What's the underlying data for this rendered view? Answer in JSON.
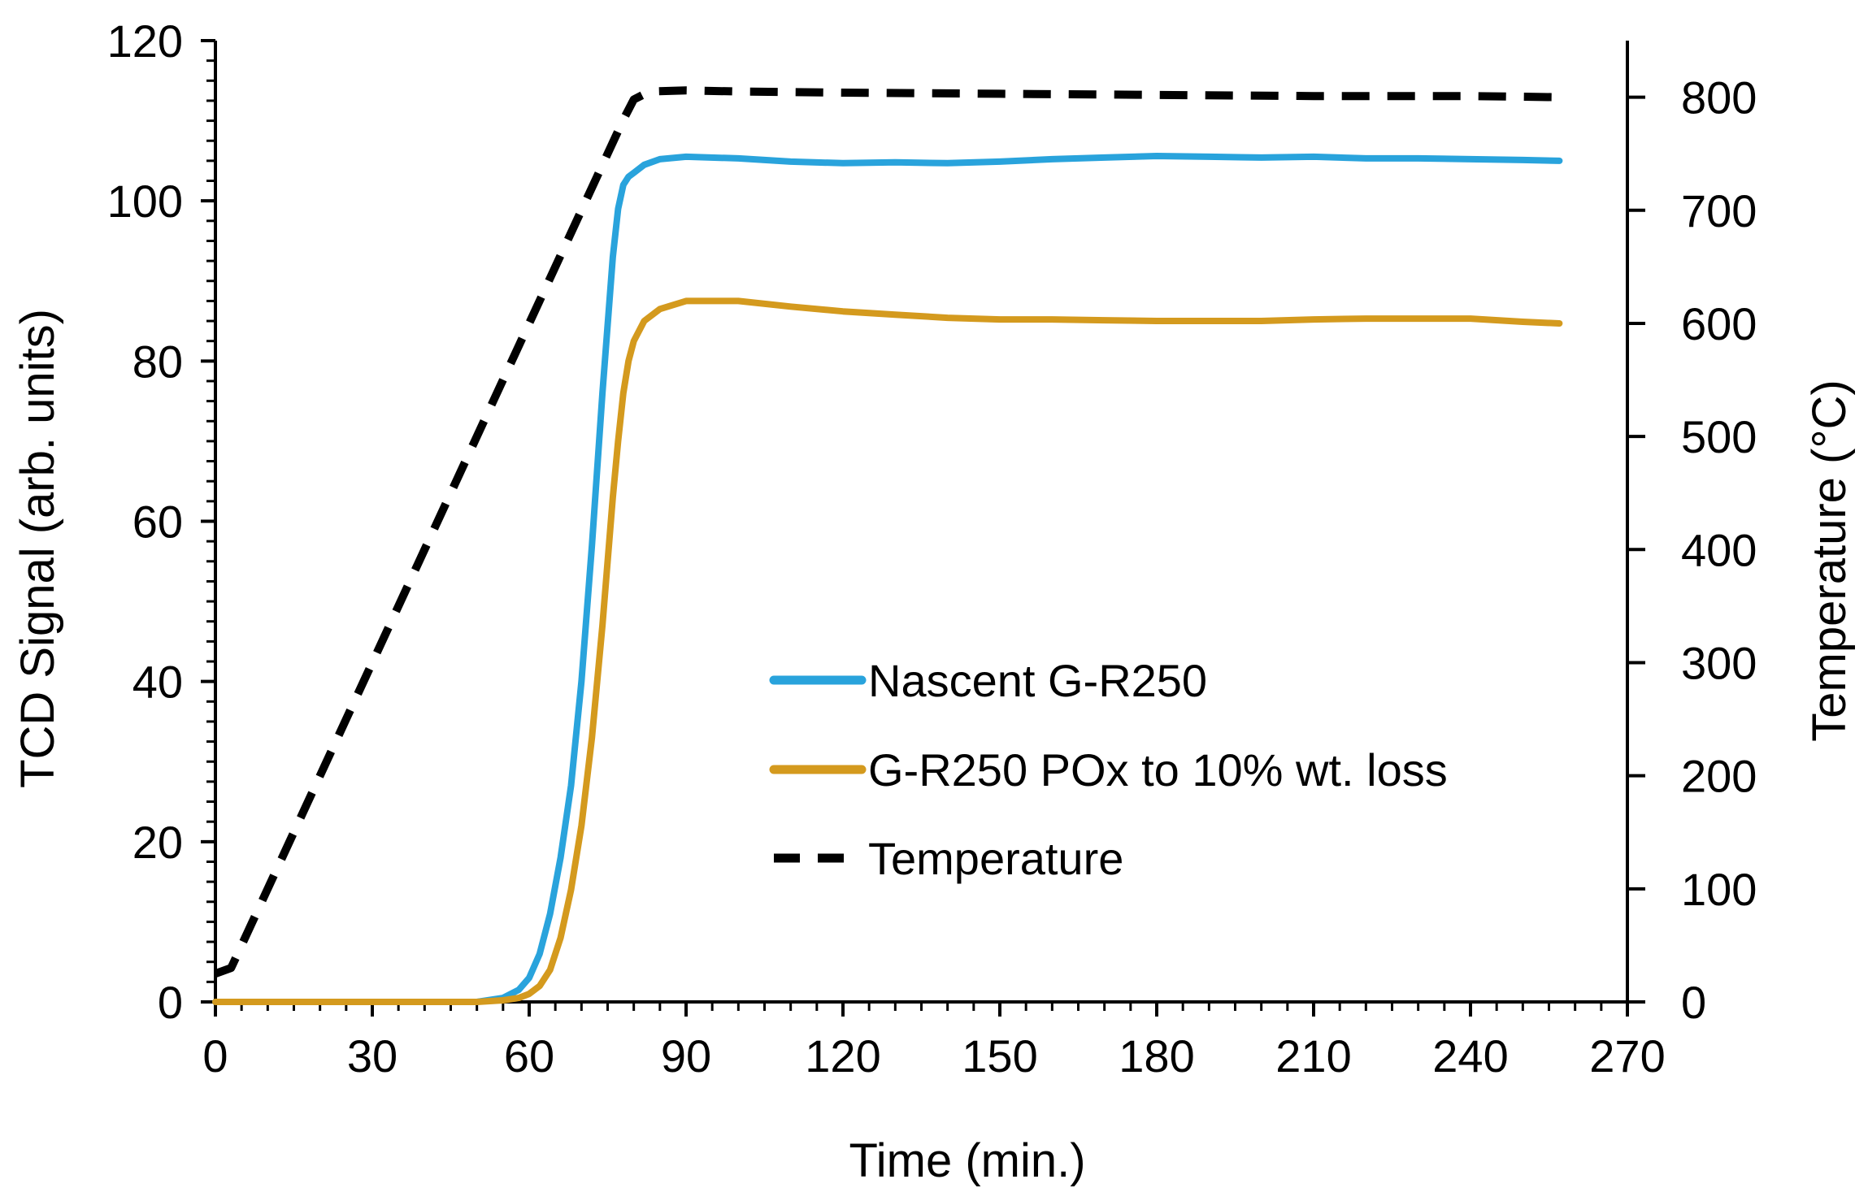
{
  "chart_data": {
    "type": "line",
    "title": "",
    "xlabel": "Time (min.)",
    "ylabel": "TCD Signal (arb. units)",
    "y2label": "Temperature (°C)",
    "xlim": [
      0,
      270
    ],
    "ylim": [
      0,
      120
    ],
    "y2lim": [
      0,
      850
    ],
    "xticks": [
      0,
      30,
      60,
      90,
      120,
      150,
      180,
      210,
      240,
      270
    ],
    "yticks": [
      0,
      20,
      40,
      60,
      80,
      100,
      120
    ],
    "y2ticks": [
      0,
      100,
      200,
      300,
      400,
      500,
      600,
      700,
      800
    ],
    "grid": false,
    "legend_position": "center",
    "series": [
      {
        "name": "Nascent G-R250",
        "axis": "left",
        "color": "#29A3DC",
        "style": "solid",
        "x": [
          0,
          10,
          20,
          30,
          40,
          50,
          55,
          58,
          60,
          62,
          64,
          66,
          68,
          70,
          72,
          74,
          76,
          77,
          78,
          79,
          80,
          82,
          85,
          90,
          100,
          110,
          120,
          130,
          140,
          150,
          160,
          170,
          180,
          190,
          200,
          210,
          220,
          230,
          240,
          250,
          257
        ],
        "y": [
          0,
          0,
          0,
          0,
          0,
          0,
          0.5,
          1.5,
          3,
          6,
          11,
          18,
          27,
          40,
          57,
          76,
          93,
          99,
          102,
          103,
          103.5,
          104.5,
          105.2,
          105.5,
          105.3,
          104.9,
          104.7,
          104.8,
          104.7,
          104.9,
          105.2,
          105.4,
          105.6,
          105.5,
          105.4,
          105.5,
          105.3,
          105.3,
          105.2,
          105.1,
          105
        ]
      },
      {
        "name": "G-R250 POx to 10% wt. loss",
        "axis": "left",
        "color": "#D49A1E",
        "style": "solid",
        "x": [
          0,
          10,
          20,
          30,
          40,
          50,
          55,
          58,
          60,
          62,
          64,
          66,
          68,
          70,
          72,
          74,
          76,
          77,
          78,
          79,
          80,
          82,
          85,
          90,
          100,
          110,
          120,
          130,
          140,
          150,
          160,
          170,
          180,
          190,
          200,
          210,
          220,
          230,
          240,
          250,
          257
        ],
        "y": [
          0,
          0,
          0,
          0,
          0,
          0,
          0.2,
          0.5,
          1,
          2,
          4,
          8,
          14,
          22,
          33,
          47,
          63,
          70,
          76,
          80,
          82.5,
          85,
          86.5,
          87.5,
          87.5,
          86.8,
          86.2,
          85.8,
          85.4,
          85.2,
          85.2,
          85.1,
          85.0,
          85.0,
          85.0,
          85.2,
          85.3,
          85.3,
          85.3,
          84.9,
          84.7
        ]
      },
      {
        "name": "Temperature",
        "axis": "right",
        "color": "#000000",
        "style": "dashed",
        "x": [
          0,
          3,
          78,
          80,
          83,
          90,
          100,
          120,
          150,
          180,
          210,
          240,
          257
        ],
        "y": [
          25,
          30,
          780,
          798,
          805,
          806,
          805,
          804,
          803,
          802,
          801,
          801,
          800
        ]
      }
    ]
  }
}
